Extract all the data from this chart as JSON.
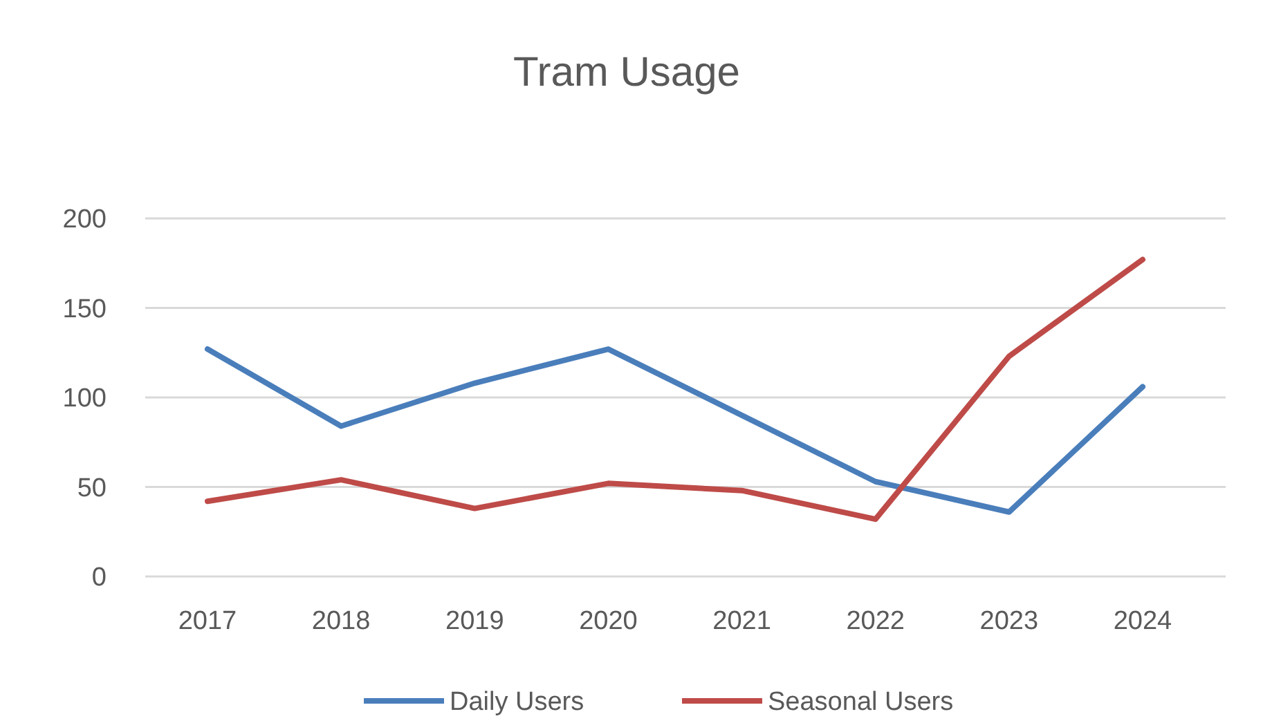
{
  "chart_data": {
    "type": "line",
    "title": "Tram Usage",
    "categories": [
      "2017",
      "2018",
      "2019",
      "2020",
      "2021",
      "2022",
      "2023",
      "2024"
    ],
    "series": [
      {
        "name": "Daily Users",
        "color": "#4a7ebb",
        "values": [
          127,
          84,
          108,
          127,
          90,
          53,
          36,
          106
        ]
      },
      {
        "name": "Seasonal Users",
        "color": "#be4b48",
        "values": [
          42,
          54,
          38,
          52,
          48,
          32,
          123,
          177
        ]
      }
    ],
    "ylim": [
      0,
      200
    ],
    "yticks": [
      0,
      50,
      100,
      150,
      200
    ],
    "grid": "y",
    "legend": "bottom",
    "marker": "none",
    "line_style": "solid"
  }
}
